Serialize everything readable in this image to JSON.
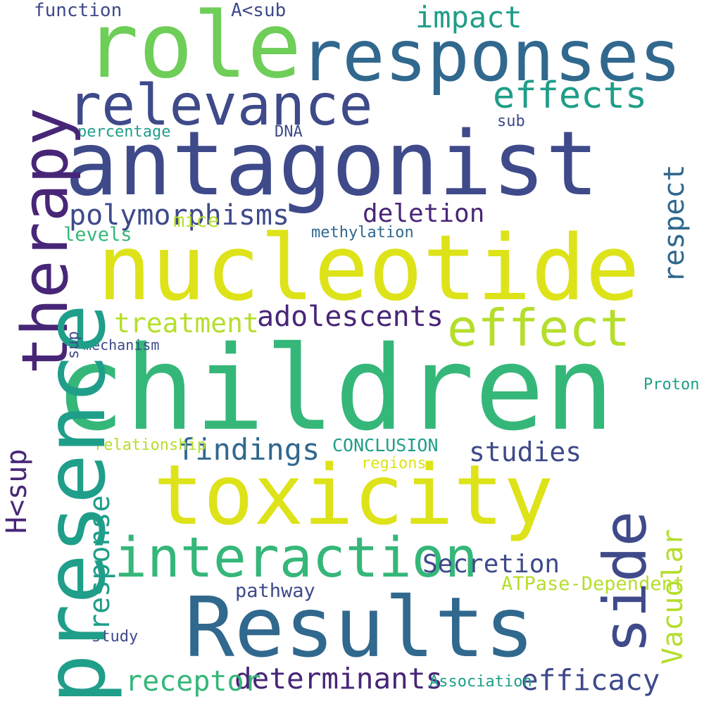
{
  "colors": {
    "background": "#ffffff",
    "dark_purple": "#482677",
    "indigo": "#3e4a89",
    "steel_blue": "#31688e",
    "teal": "#26828e",
    "sea_green": "#1f9e89",
    "green": "#35b779",
    "light_green": "#6ece58",
    "lime": "#b5de2b",
    "yellow": "#dde318"
  },
  "words": [
    "children",
    "nucleotide",
    "antagonist",
    "toxicity",
    "Results",
    "role",
    "responses",
    "relevance",
    "effect",
    "interaction",
    "effects",
    "impact",
    "deletion",
    "findings",
    "adolescents",
    "determinants",
    "efficacy",
    "polymorphisms",
    "receptor",
    "treatment",
    "studies",
    "Secretion",
    "CONCLUSION",
    "function",
    "A<sub",
    "mice",
    "levels",
    "DNA",
    "sub",
    "percentage",
    "methylation",
    "relationship",
    "regions",
    "Proton",
    "ATPase-Dependent",
    "pathway",
    "study",
    "Association",
    "mechanism",
    "therapy",
    "presence",
    "side",
    "respect",
    "Vacuolar",
    "H<sup",
    "response",
    "sup"
  ]
}
